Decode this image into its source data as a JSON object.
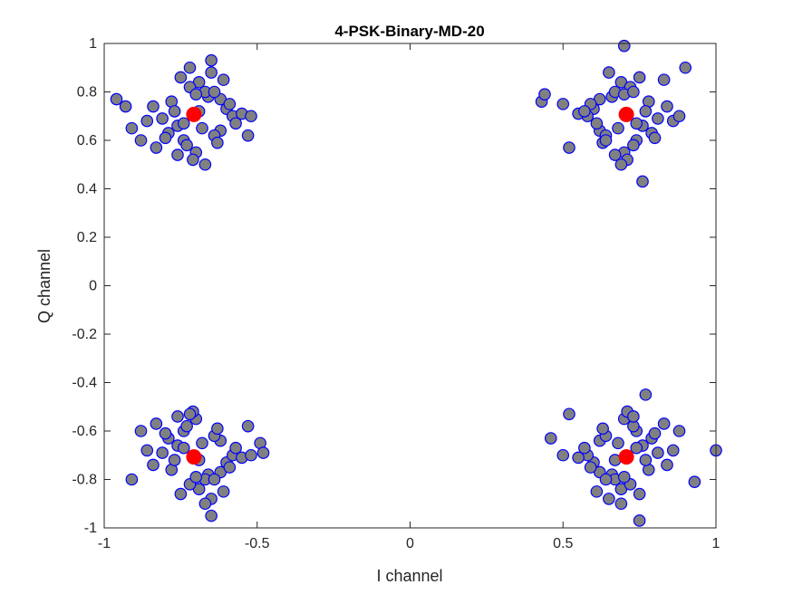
{
  "chart_data": {
    "type": "scatter",
    "title": "4-PSK-Binary-MD-20",
    "xlabel": "I channel",
    "ylabel": "Q channel",
    "xlim": [
      -1,
      1
    ],
    "ylim": [
      -1,
      1
    ],
    "xticks": [
      -1,
      -0.5,
      0,
      0.5,
      1
    ],
    "xtick_labels": [
      "-1",
      "-0.5",
      "0",
      "0.5",
      "1"
    ],
    "yticks": [
      -1,
      -0.8,
      -0.6,
      -0.4,
      -0.2,
      0,
      0.2,
      0.4,
      0.6,
      0.8,
      1
    ],
    "ytick_labels": [
      "-1",
      "-0.8",
      "-0.6",
      "-0.4",
      "-0.2",
      "0",
      "0.2",
      "0.4",
      "0.6",
      "0.8",
      "1"
    ],
    "grid": false,
    "colors": {
      "received_fill": "#808080",
      "received_edge": "#0000ff",
      "ideal": "#ff0000",
      "axis": "#262626"
    },
    "series": [
      {
        "marker": "circle",
        "color": "#808080",
        "edgecolor": "#0000ff",
        "x": [
          -0.707,
          -0.62,
          -0.78,
          -0.74,
          -0.66,
          -0.81,
          -0.6,
          -0.69,
          -0.73,
          -0.64,
          -0.76,
          -0.84,
          -0.58,
          -0.7,
          -0.67,
          -0.75,
          -0.79,
          -0.62,
          -0.71,
          -0.55,
          -0.86,
          -0.68,
          -0.72,
          -0.63,
          -0.77,
          -0.65,
          -0.8,
          -0.59,
          -0.74,
          -0.7,
          -0.96,
          -0.93,
          -0.91,
          -0.53,
          -0.65,
          -0.72,
          -0.67,
          -0.83,
          -0.61,
          -0.57,
          -0.69,
          -0.76,
          -0.64,
          -0.88,
          -0.52,
          0.707,
          0.62,
          0.78,
          0.74,
          0.66,
          0.81,
          0.6,
          0.69,
          0.73,
          0.64,
          0.76,
          0.84,
          0.58,
          0.7,
          0.67,
          0.75,
          0.79,
          0.62,
          0.71,
          0.55,
          0.86,
          0.68,
          0.72,
          0.63,
          0.77,
          0.65,
          0.8,
          0.59,
          0.74,
          0.7,
          0.43,
          0.44,
          0.7,
          0.76,
          0.9,
          0.52,
          0.69,
          0.83,
          0.61,
          0.57,
          0.67,
          0.73,
          0.64,
          0.88,
          0.5,
          -0.707,
          -0.62,
          -0.78,
          -0.74,
          -0.66,
          -0.81,
          -0.6,
          -0.69,
          -0.73,
          -0.64,
          -0.76,
          -0.84,
          -0.58,
          -0.7,
          -0.67,
          -0.75,
          -0.79,
          -0.62,
          -0.71,
          -0.55,
          -0.86,
          -0.68,
          -0.72,
          -0.63,
          -0.77,
          -0.65,
          -0.8,
          -0.59,
          -0.74,
          -0.7,
          -0.49,
          -0.48,
          -0.91,
          -0.65,
          -0.53,
          -0.72,
          -0.67,
          -0.83,
          -0.61,
          -0.57,
          -0.69,
          -0.76,
          -0.64,
          -0.88,
          -0.52,
          0.707,
          0.62,
          0.78,
          0.74,
          0.66,
          0.81,
          0.6,
          0.69,
          0.73,
          0.64,
          0.76,
          0.84,
          0.58,
          0.7,
          0.67,
          0.75,
          0.79,
          0.62,
          0.71,
          0.55,
          0.86,
          0.68,
          0.72,
          0.63,
          0.77,
          0.65,
          0.8,
          0.59,
          0.74,
          0.7,
          1.0,
          0.93,
          0.46,
          0.75,
          0.77,
          0.52,
          0.69,
          0.83,
          0.61,
          0.57,
          0.67,
          0.73,
          0.64,
          0.88,
          0.5
        ],
        "y": [
          0.707,
          0.64,
          0.76,
          0.6,
          0.78,
          0.69,
          0.73,
          0.84,
          0.58,
          0.62,
          0.66,
          0.74,
          0.7,
          0.55,
          0.8,
          0.86,
          0.63,
          0.77,
          0.52,
          0.71,
          0.68,
          0.65,
          0.82,
          0.59,
          0.72,
          0.88,
          0.61,
          0.75,
          0.67,
          0.79,
          0.77,
          0.74,
          0.65,
          0.62,
          0.93,
          0.9,
          0.5,
          0.57,
          0.85,
          0.67,
          0.72,
          0.54,
          0.8,
          0.6,
          0.7,
          0.707,
          0.64,
          0.76,
          0.6,
          0.78,
          0.69,
          0.73,
          0.84,
          0.58,
          0.62,
          0.66,
          0.74,
          0.7,
          0.55,
          0.8,
          0.86,
          0.63,
          0.77,
          0.52,
          0.71,
          0.68,
          0.65,
          0.82,
          0.59,
          0.72,
          0.88,
          0.61,
          0.75,
          0.67,
          0.79,
          0.76,
          0.79,
          0.99,
          0.43,
          0.9,
          0.57,
          0.5,
          0.85,
          0.67,
          0.72,
          0.54,
          0.8,
          0.6,
          0.7,
          0.75,
          -0.707,
          -0.64,
          -0.76,
          -0.6,
          -0.78,
          -0.69,
          -0.73,
          -0.84,
          -0.58,
          -0.62,
          -0.66,
          -0.74,
          -0.7,
          -0.55,
          -0.8,
          -0.86,
          -0.63,
          -0.77,
          -0.52,
          -0.71,
          -0.68,
          -0.65,
          -0.82,
          -0.59,
          -0.72,
          -0.88,
          -0.61,
          -0.75,
          -0.67,
          -0.79,
          -0.65,
          -0.69,
          -0.8,
          -0.95,
          -0.58,
          -0.53,
          -0.9,
          -0.57,
          -0.85,
          -0.67,
          -0.72,
          -0.54,
          -0.8,
          -0.6,
          -0.7,
          -0.707,
          -0.64,
          -0.76,
          -0.6,
          -0.78,
          -0.69,
          -0.73,
          -0.84,
          -0.58,
          -0.62,
          -0.66,
          -0.74,
          -0.7,
          -0.55,
          -0.8,
          -0.86,
          -0.63,
          -0.77,
          -0.52,
          -0.71,
          -0.68,
          -0.65,
          -0.82,
          -0.59,
          -0.72,
          -0.88,
          -0.61,
          -0.75,
          -0.67,
          -0.79,
          -0.68,
          -0.81,
          -0.63,
          -0.97,
          -0.45,
          -0.53,
          -0.9,
          -0.57,
          -0.85,
          -0.67,
          -0.72,
          -0.54,
          -0.8,
          -0.6,
          -0.7
        ]
      },
      {
        "marker": "circle",
        "color": "#ff0000",
        "x": [
          -0.707,
          0.707,
          -0.707,
          0.707
        ],
        "y": [
          0.707,
          0.707,
          -0.707,
          -0.707
        ]
      }
    ]
  }
}
